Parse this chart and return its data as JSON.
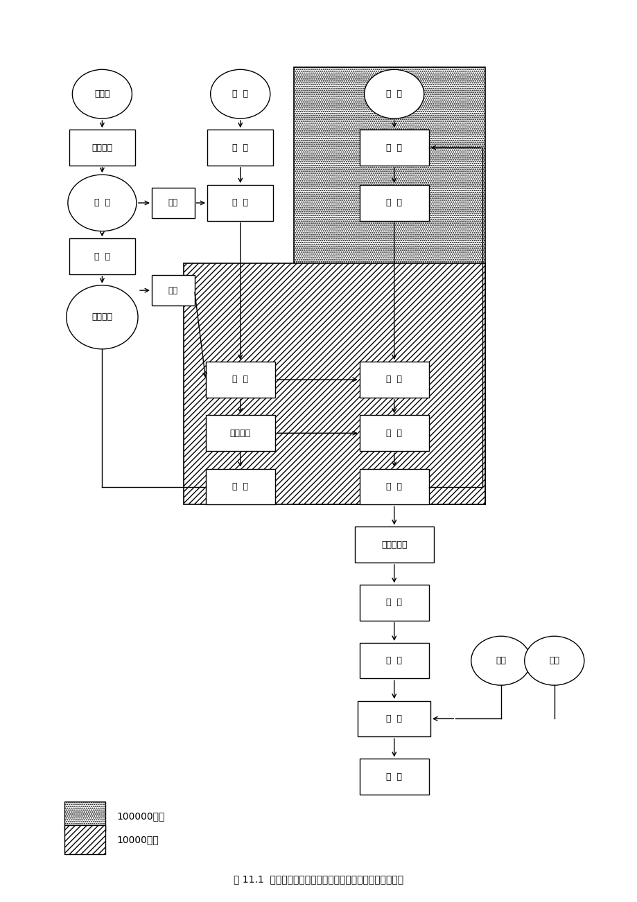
{
  "bg_color": "#ffffff",
  "title_text": "图 11.1  可灭菌小容量注射剂工艺流程示意图及环境区域划分",
  "legend_dotted_label": "100000级区",
  "legend_hatched_label": "10000级区"
}
